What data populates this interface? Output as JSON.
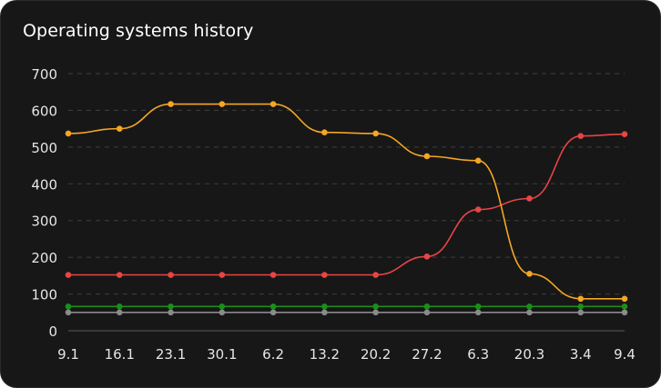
{
  "chart_data": {
    "type": "line",
    "title": "Operating systems history",
    "xlabel": "",
    "ylabel": "",
    "categories": [
      "9.1",
      "16.1",
      "23.1",
      "30.1",
      "6.2",
      "13.2",
      "20.2",
      "27.2",
      "6.3",
      "20.3",
      "3.4",
      "9.4"
    ],
    "x_positions": [
      0,
      7,
      14,
      21,
      28,
      35,
      42,
      49,
      56,
      63,
      70,
      76
    ],
    "ylim": [
      0,
      700
    ],
    "yticks": [
      0,
      100,
      200,
      300,
      400,
      500,
      600,
      700
    ],
    "grid": "horizontal dashed",
    "legend": "none",
    "series": [
      {
        "color": "#f5a623",
        "values": [
          537,
          550,
          617,
          617,
          617,
          540,
          537,
          475,
          463,
          155,
          87,
          87
        ]
      },
      {
        "color": "#e84545",
        "values": [
          152,
          152,
          152,
          152,
          152,
          152,
          152,
          202,
          330,
          360,
          530,
          535
        ]
      },
      {
        "color": "#1a8f1a",
        "values": [
          66,
          66,
          66,
          66,
          66,
          66,
          66,
          66,
          66,
          66,
          66,
          66
        ]
      },
      {
        "color": "#8a8a8a",
        "values": [
          50,
          50,
          50,
          50,
          50,
          50,
          50,
          50,
          50,
          50,
          50,
          50
        ]
      }
    ]
  }
}
